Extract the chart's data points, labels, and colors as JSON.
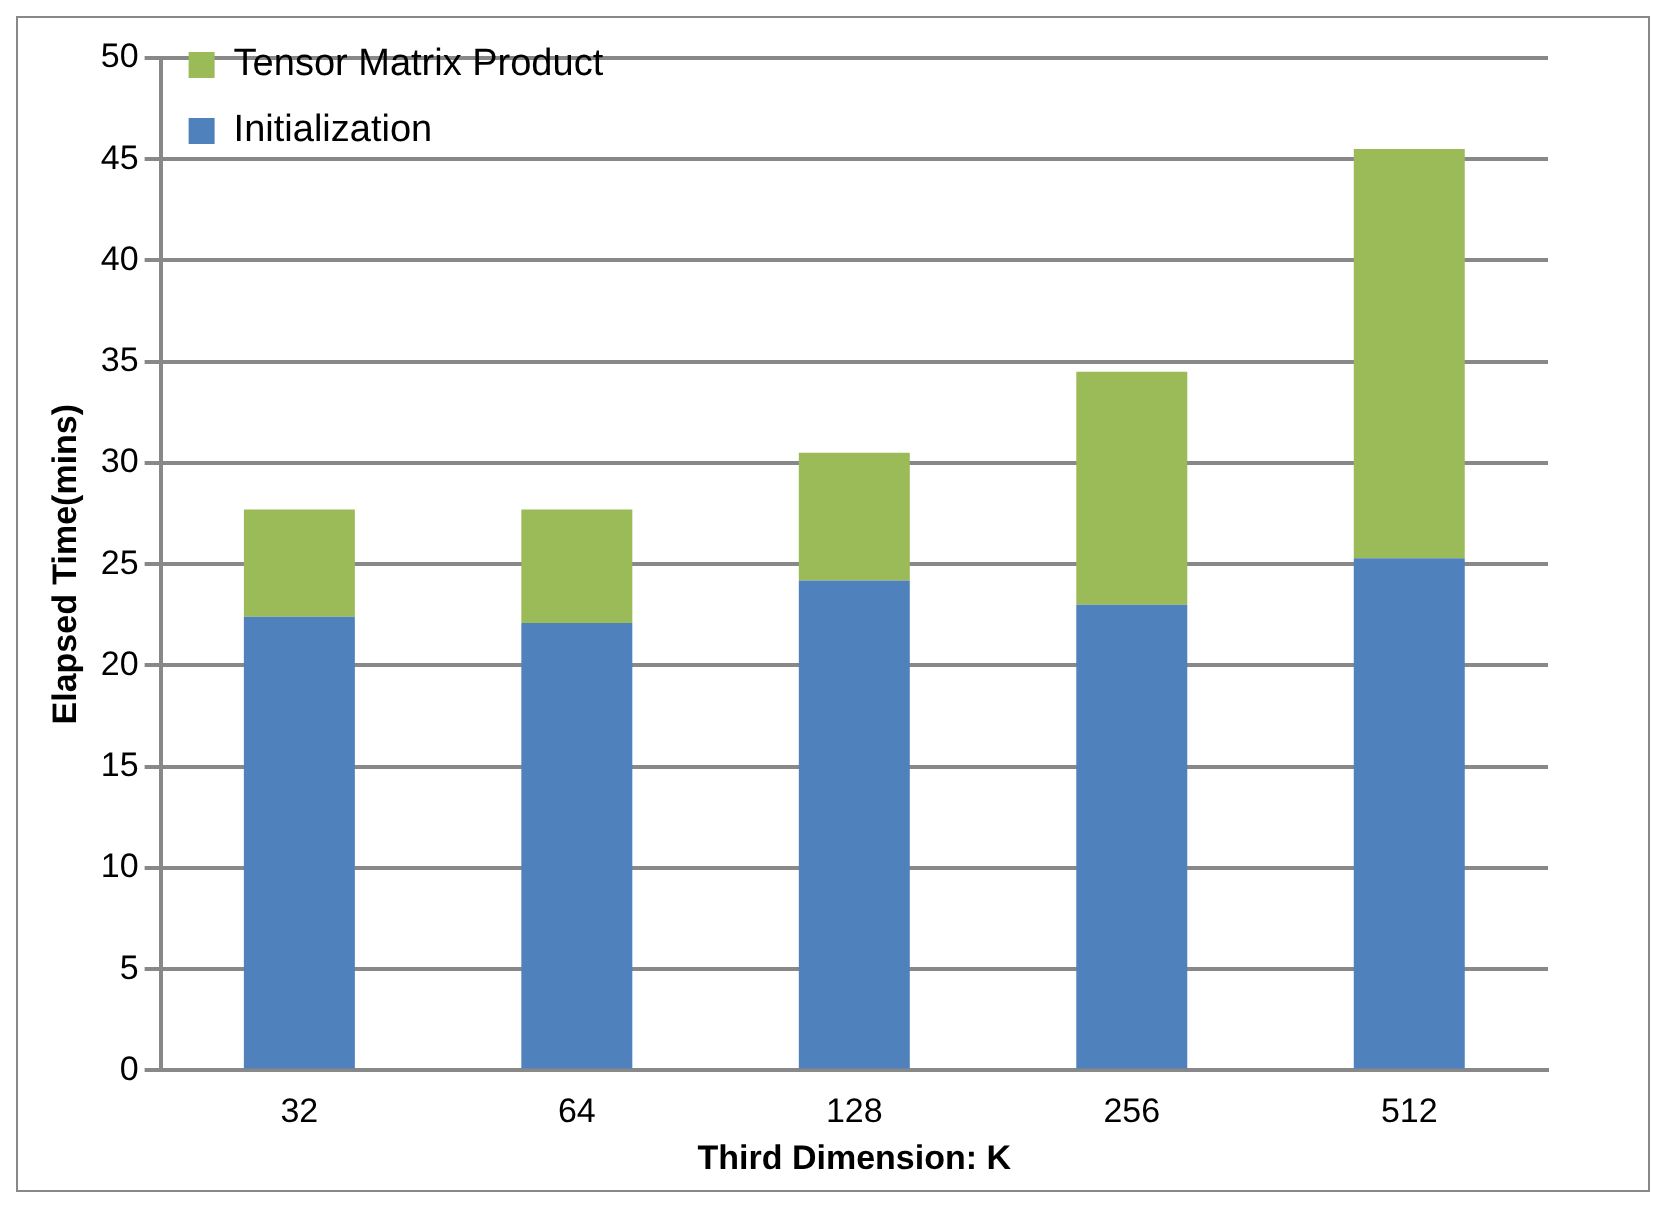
{
  "chart_data": {
    "type": "bar",
    "stacked": true,
    "xlabel": "Third Dimension: K",
    "ylabel": "Elapsed Time(mins)",
    "categories": [
      "32",
      "64",
      "128",
      "256",
      "512"
    ],
    "series": [
      {
        "name": "Initialization",
        "color": "#4f81bd",
        "values": [
          22.4,
          22.1,
          24.2,
          23.0,
          25.3
        ]
      },
      {
        "name": "Tensor Matrix Product",
        "color": "#9bbb59",
        "values": [
          5.3,
          5.6,
          6.3,
          11.5,
          20.2
        ]
      }
    ],
    "ylim": [
      0,
      50
    ],
    "yticks": [
      0,
      5,
      10,
      15,
      20,
      25,
      30,
      35,
      40,
      45,
      50
    ],
    "grid": "y",
    "legend": "top left"
  }
}
